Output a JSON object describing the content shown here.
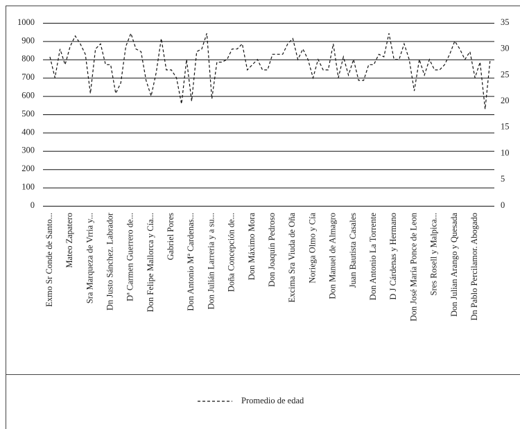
{
  "chart_data": {
    "type": "line",
    "categories": [
      "Exmo Sr Conde de Santo...",
      null,
      null,
      null,
      "Mateo Zapatero",
      null,
      null,
      null,
      "Sra Marqueza de Vrria y...",
      null,
      null,
      null,
      "Dn Justo Sánchez. Labrador",
      null,
      null,
      null,
      "Dª Carmen Guerrero de...",
      null,
      null,
      null,
      "Don Felipe Mallorca y Cía...",
      null,
      null,
      null,
      "Gabriel Pores",
      null,
      null,
      null,
      "Don Antonio Mª Cardenas...",
      null,
      null,
      null,
      "Don Julián Larreria y a su...",
      null,
      null,
      null,
      "Doña Concepción de...",
      null,
      null,
      null,
      "Don Máximo Mora",
      null,
      null,
      null,
      "Don Joaquín Pedroso",
      null,
      null,
      null,
      "Excima Sra Viuda de Oña",
      null,
      null,
      null,
      "Noriega Olmo y Cía",
      null,
      null,
      null,
      "Don Manuel de Almagro",
      null,
      null,
      null,
      "Juan Bautista Casales",
      null,
      null,
      null,
      "Don Antonio La Torrente",
      null,
      null,
      null,
      "D J Cárdenas y Hermano",
      null,
      null,
      null,
      "Don José María Ponce de Leon",
      null,
      null,
      null,
      "Sres Rosell y Malpica...",
      null,
      null,
      null,
      "Don Julian Arango y Quesada",
      null,
      null,
      null,
      "Dn Pablo Percilamor. Abogado",
      null,
      null,
      null
    ],
    "series": [
      {
        "name": "Promedio de edad",
        "color": "#111111",
        "axis": "y2",
        "dashed": true,
        "values": [
          28.5,
          24.5,
          30,
          27,
          30.5,
          32.5,
          31,
          29,
          21.5,
          30,
          31,
          27,
          27,
          21.5,
          23.5,
          30.5,
          33,
          30,
          29.5,
          24,
          21,
          25.5,
          32,
          26,
          26,
          24.5,
          19.5,
          28,
          20,
          29.5,
          30,
          33,
          20.5,
          27.5,
          27.5,
          28,
          30,
          30,
          31,
          26,
          27,
          28,
          26,
          26,
          29,
          29,
          29,
          31,
          32,
          28,
          30,
          28,
          24.5,
          28,
          26,
          26,
          31,
          24.5,
          28.5,
          25,
          28,
          24,
          24,
          27,
          27,
          29,
          28.5,
          33,
          28,
          28,
          31,
          28,
          22,
          28,
          25,
          28,
          26,
          26,
          27,
          29,
          31.5,
          30,
          28,
          29.5,
          24.5,
          27.5,
          18.5,
          28
        ]
      }
    ],
    "ylim": [
      0,
      1000
    ],
    "yticks": [
      0,
      100,
      200,
      300,
      400,
      500,
      600,
      700,
      800,
      900,
      1000
    ],
    "y2lim": [
      0,
      35
    ],
    "y2ticks": [
      0,
      5,
      10,
      15,
      20,
      25,
      30,
      35
    ],
    "grid": true,
    "legend": "bottom"
  }
}
